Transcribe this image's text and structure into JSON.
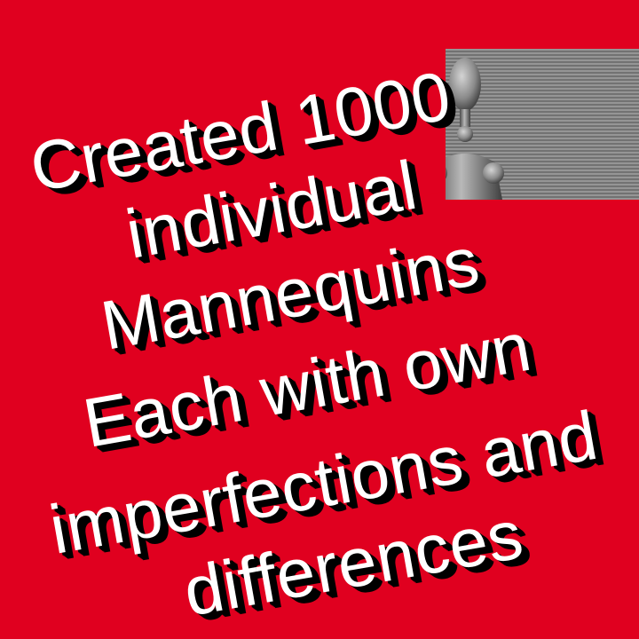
{
  "colors": {
    "background": "#e0001f",
    "text": "#ffffff",
    "text_shadow": "#000000",
    "mannequin": "#808080"
  },
  "image": {
    "subject": "crowd of grey wooden mannequins"
  },
  "headline": {
    "lines": [
      "Created 1000",
      "individual",
      "Mannequins",
      "Each with own",
      "imperfections and",
      "differences"
    ]
  }
}
